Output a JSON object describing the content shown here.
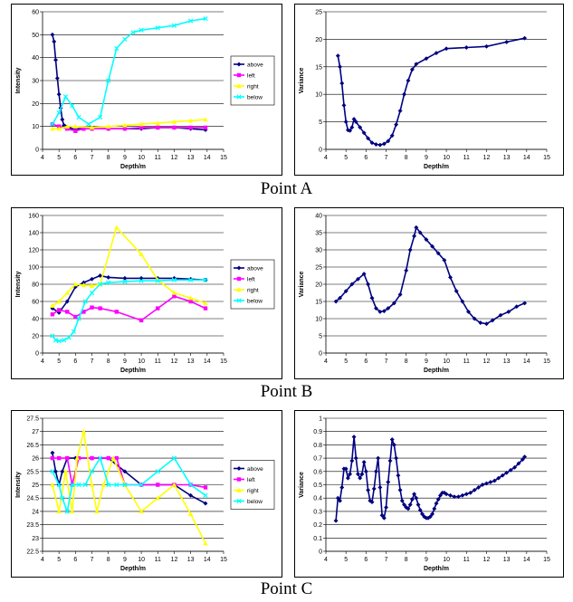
{
  "captions": [
    "Point A",
    "Point B",
    "Point C"
  ],
  "chart_data": [
    {
      "type": "line",
      "xlabel": "Depth/m",
      "ylabel": "Intensity",
      "xlim": [
        4,
        15
      ],
      "xticks": [
        "4",
        "5",
        "6",
        "7",
        "8",
        "9",
        "10",
        "11",
        "12",
        "13",
        "14",
        "15"
      ],
      "ylim": [
        0,
        60
      ],
      "yticks": [
        "0",
        "10",
        "20",
        "30",
        "40",
        "50",
        "60"
      ],
      "grid": true,
      "legend": "right",
      "series": [
        {
          "name": "above",
          "color": "#000080",
          "marker": "diamond",
          "x": [
            4.6,
            4.7,
            4.8,
            4.9,
            5.0,
            5.1,
            5.2,
            5.3,
            5.4,
            5.5,
            5.7,
            6.0,
            6.5,
            7,
            8,
            9,
            10,
            11,
            12,
            13,
            13.9
          ],
          "y": [
            50,
            47,
            39,
            31,
            24,
            18,
            13,
            10.5,
            10,
            9.5,
            9,
            9,
            9,
            9,
            9,
            9,
            9,
            9.5,
            9.5,
            9,
            8.5
          ]
        },
        {
          "name": "left",
          "color": "#ff00ff",
          "marker": "square",
          "x": [
            4.6,
            5.0,
            5.5,
            6.0,
            6.5,
            7.0,
            8,
            9,
            10,
            11,
            12,
            13,
            13.9
          ],
          "y": [
            11,
            10,
            9,
            8,
            9,
            9,
            9,
            9,
            9.5,
            9.5,
            9.5,
            9.5,
            9.5
          ]
        },
        {
          "name": "right",
          "color": "#ffff00",
          "marker": "triangle",
          "x": [
            4.6,
            5.0,
            5.5,
            6.0,
            7,
            8,
            9,
            10,
            11,
            12,
            13,
            13.9
          ],
          "y": [
            9,
            9,
            10,
            10,
            9.5,
            10,
            10.5,
            11,
            11.5,
            12,
            12.5,
            13
          ]
        },
        {
          "name": "below",
          "color": "#00ffff",
          "marker": "x",
          "x": [
            4.6,
            5.0,
            5.4,
            5.8,
            6.2,
            6.8,
            7.5,
            8.0,
            8.5,
            9.0,
            9.5,
            10,
            11,
            12,
            13,
            13.9
          ],
          "y": [
            11,
            16,
            23,
            19,
            14,
            11,
            14,
            30,
            44,
            48,
            51,
            52,
            53,
            54,
            56,
            57
          ]
        }
      ]
    },
    {
      "type": "line",
      "xlabel": "Depth/m",
      "ylabel": "Variance",
      "xlim": [
        4,
        15
      ],
      "xticks": [
        "4",
        "5",
        "6",
        "7",
        "8",
        "9",
        "10",
        "11",
        "12",
        "13",
        "14",
        "15"
      ],
      "ylim": [
        0,
        25
      ],
      "yticks": [
        "0",
        "5",
        "10",
        "15",
        "20",
        "25"
      ],
      "grid": true,
      "series": [
        {
          "name": "",
          "color": "#000080",
          "marker": "diamond",
          "x": [
            4.6,
            4.7,
            4.8,
            4.9,
            5.0,
            5.1,
            5.2,
            5.3,
            5.4,
            5.5,
            5.7,
            5.9,
            6.1,
            6.3,
            6.5,
            6.7,
            6.9,
            7.1,
            7.3,
            7.5,
            7.7,
            7.9,
            8.1,
            8.3,
            8.5,
            9,
            9.5,
            10,
            11,
            12,
            13,
            13.9
          ],
          "y": [
            17,
            15,
            12,
            8,
            5,
            3.5,
            3.4,
            4,
            5.5,
            5,
            4,
            3,
            2,
            1.2,
            0.9,
            0.8,
            1,
            1.5,
            2.5,
            4.5,
            7,
            10,
            12.5,
            14.5,
            15.5,
            16.5,
            17.5,
            18.3,
            18.5,
            18.7,
            19.5,
            20.2
          ]
        }
      ]
    },
    {
      "type": "line",
      "xlabel": "Depth/m",
      "ylabel": "Intensity",
      "xlim": [
        4,
        15
      ],
      "xticks": [
        "4",
        "5",
        "6",
        "7",
        "8",
        "9",
        "10",
        "11",
        "12",
        "13",
        "14",
        "15"
      ],
      "ylim": [
        0,
        160
      ],
      "yticks": [
        "0",
        "20",
        "40",
        "60",
        "80",
        "100",
        "120",
        "140",
        "160"
      ],
      "grid": true,
      "legend": "right",
      "series": [
        {
          "name": "above",
          "color": "#000080",
          "marker": "diamond",
          "x": [
            4.6,
            5.0,
            5.5,
            6.0,
            6.5,
            7.0,
            7.5,
            8.0,
            9,
            10,
            11,
            12,
            13,
            13.9
          ],
          "y": [
            52,
            47,
            60,
            77,
            82,
            86,
            90,
            88,
            87,
            87,
            87,
            87,
            86,
            85
          ]
        },
        {
          "name": "left",
          "color": "#ff00ff",
          "marker": "square",
          "x": [
            4.6,
            5.0,
            5.5,
            6.0,
            6.5,
            7.0,
            7.5,
            8.5,
            10,
            11,
            12,
            13,
            13.9
          ],
          "y": [
            45,
            50,
            48,
            42,
            48,
            53,
            52,
            48,
            38,
            52,
            66,
            60,
            52
          ]
        },
        {
          "name": "right",
          "color": "#ffff00",
          "marker": "triangle",
          "x": [
            4.6,
            5.0,
            5.5,
            6.0,
            6.5,
            7.0,
            7.5,
            8.5,
            10,
            11,
            12,
            13,
            13.9
          ],
          "y": [
            55,
            60,
            70,
            80,
            79,
            78,
            80,
            146,
            115,
            85,
            70,
            64,
            58
          ]
        },
        {
          "name": "below",
          "color": "#00ffff",
          "marker": "x",
          "x": [
            4.6,
            4.8,
            5.0,
            5.3,
            5.6,
            5.9,
            6.2,
            6.6,
            7.0,
            7.5,
            8.0,
            9,
            10,
            11,
            12,
            13,
            13.9
          ],
          "y": [
            20,
            15,
            14,
            15,
            18,
            25,
            40,
            60,
            70,
            80,
            82,
            83,
            84,
            84,
            85,
            85,
            85
          ]
        }
      ]
    },
    {
      "type": "line",
      "xlabel": "Depth/m",
      "ylabel": "Variance",
      "xlim": [
        4,
        15
      ],
      "xticks": [
        "4",
        "5",
        "6",
        "7",
        "8",
        "9",
        "10",
        "11",
        "12",
        "13",
        "14",
        "15"
      ],
      "ylim": [
        0,
        40
      ],
      "yticks": [
        "0",
        "5",
        "10",
        "15",
        "20",
        "25",
        "30",
        "35",
        "40"
      ],
      "grid": true,
      "series": [
        {
          "name": "",
          "color": "#000080",
          "marker": "diamond",
          "x": [
            4.5,
            4.7,
            5.0,
            5.3,
            5.6,
            5.9,
            6.1,
            6.3,
            6.5,
            6.7,
            6.9,
            7.1,
            7.4,
            7.7,
            8.0,
            8.2,
            8.4,
            8.5,
            8.7,
            9.0,
            9.3,
            9.6,
            9.9,
            10.2,
            10.5,
            10.8,
            11.1,
            11.4,
            11.7,
            12.0,
            12.3,
            12.7,
            13.1,
            13.5,
            13.9
          ],
          "y": [
            15,
            16,
            18,
            20,
            21.5,
            23,
            20,
            16,
            13,
            12,
            12.2,
            13,
            14.5,
            17,
            24,
            30,
            34,
            36.5,
            35,
            33,
            31,
            29,
            27,
            22,
            18,
            15,
            12,
            10,
            8.8,
            8.5,
            9.5,
            11,
            12,
            13.5,
            14.5
          ]
        }
      ]
    },
    {
      "type": "line",
      "xlabel": "Depth/m",
      "ylabel": "Intensity",
      "xlim": [
        4,
        15
      ],
      "xticks": [
        "4",
        "5",
        "6",
        "7",
        "8",
        "9",
        "10",
        "11",
        "12",
        "13",
        "14",
        "15"
      ],
      "ylim": [
        22.5,
        27.5
      ],
      "yticks": [
        "22.5",
        "23",
        "23.5",
        "24",
        "24.5",
        "25",
        "25.5",
        "26",
        "26.5",
        "27",
        "27.5"
      ],
      "grid": true,
      "legend": "right",
      "series": [
        {
          "name": "above",
          "color": "#000080",
          "marker": "diamond",
          "x": [
            4.6,
            4.8,
            5.0,
            5.2,
            5.5,
            6,
            7,
            8,
            9,
            10,
            11,
            12,
            13,
            13.9
          ],
          "y": [
            26.2,
            25.5,
            25,
            25.5,
            26,
            26,
            26,
            26,
            25.5,
            25,
            25,
            25,
            24.6,
            24.3
          ]
        },
        {
          "name": "left",
          "color": "#ff00ff",
          "marker": "square",
          "x": [
            4.6,
            5.0,
            5.5,
            5.8,
            6.2,
            7,
            8,
            8.5,
            9,
            10,
            11,
            12,
            13,
            13.9
          ],
          "y": [
            26,
            26,
            26,
            25,
            26,
            26,
            26,
            26,
            25,
            25,
            25,
            25,
            25,
            24.9
          ]
        },
        {
          "name": "right",
          "color": "#ffff00",
          "marker": "triangle",
          "x": [
            4.6,
            5.0,
            5.4,
            5.8,
            6.1,
            6.5,
            7.0,
            7.3,
            7.7,
            8.3,
            9,
            10,
            11,
            12,
            13,
            13.9
          ],
          "y": [
            25,
            24,
            25.5,
            24,
            26,
            27,
            25,
            24,
            25,
            26,
            25,
            24,
            24.5,
            25,
            23.9,
            22.8
          ]
        },
        {
          "name": "below",
          "color": "#00ffff",
          "marker": "x",
          "x": [
            4.6,
            5.0,
            5.2,
            5.5,
            5.8,
            6.2,
            6.6,
            7.0,
            7.5,
            8.0,
            8.5,
            9,
            10,
            11,
            12,
            13,
            13.9
          ],
          "y": [
            25.5,
            25,
            24.5,
            24,
            25,
            25,
            25,
            25.5,
            26,
            25,
            25,
            25,
            25,
            25.5,
            26,
            25,
            24.6
          ]
        }
      ]
    },
    {
      "type": "line",
      "xlabel": "Depth/m",
      "ylabel": "Variance",
      "xlim": [
        4,
        15
      ],
      "xticks": [
        "4",
        "5",
        "6",
        "7",
        "8",
        "9",
        "10",
        "11",
        "12",
        "13",
        "14",
        "15"
      ],
      "ylim": [
        0,
        1
      ],
      "yticks": [
        "0",
        "0.1",
        "0.2",
        "0.3",
        "0.4",
        "0.5",
        "0.6",
        "0.7",
        "0.8",
        "0.9",
        "1"
      ],
      "grid": true,
      "series": [
        {
          "name": "",
          "color": "#000080",
          "marker": "diamond",
          "x": [
            4.5,
            4.6,
            4.7,
            4.8,
            4.9,
            5.0,
            5.1,
            5.2,
            5.3,
            5.4,
            5.5,
            5.6,
            5.7,
            5.8,
            5.9,
            6.0,
            6.1,
            6.2,
            6.3,
            6.4,
            6.5,
            6.6,
            6.7,
            6.8,
            6.9,
            7.0,
            7.1,
            7.2,
            7.3,
            7.4,
            7.5,
            7.6,
            7.7,
            7.8,
            7.9,
            8.0,
            8.1,
            8.2,
            8.3,
            8.4,
            8.5,
            8.6,
            8.7,
            8.8,
            8.9,
            9.0,
            9.1,
            9.2,
            9.3,
            9.4,
            9.5,
            9.6,
            9.7,
            9.8,
            9.9,
            10.0,
            10.2,
            10.4,
            10.6,
            10.8,
            11.0,
            11.2,
            11.4,
            11.6,
            11.8,
            12.0,
            12.2,
            12.4,
            12.6,
            12.8,
            13.0,
            13.2,
            13.4,
            13.6,
            13.8,
            13.9
          ],
          "y": [
            0.23,
            0.4,
            0.38,
            0.48,
            0.62,
            0.62,
            0.55,
            0.58,
            0.68,
            0.86,
            0.7,
            0.58,
            0.55,
            0.58,
            0.67,
            0.6,
            0.46,
            0.38,
            0.37,
            0.47,
            0.6,
            0.7,
            0.48,
            0.27,
            0.25,
            0.33,
            0.52,
            0.68,
            0.84,
            0.8,
            0.7,
            0.57,
            0.46,
            0.38,
            0.35,
            0.33,
            0.32,
            0.35,
            0.39,
            0.43,
            0.4,
            0.35,
            0.31,
            0.28,
            0.26,
            0.25,
            0.25,
            0.26,
            0.28,
            0.32,
            0.36,
            0.39,
            0.42,
            0.44,
            0.44,
            0.43,
            0.42,
            0.41,
            0.41,
            0.42,
            0.43,
            0.44,
            0.46,
            0.48,
            0.5,
            0.51,
            0.52,
            0.53,
            0.55,
            0.57,
            0.59,
            0.61,
            0.63,
            0.66,
            0.69,
            0.71
          ]
        }
      ]
    }
  ]
}
